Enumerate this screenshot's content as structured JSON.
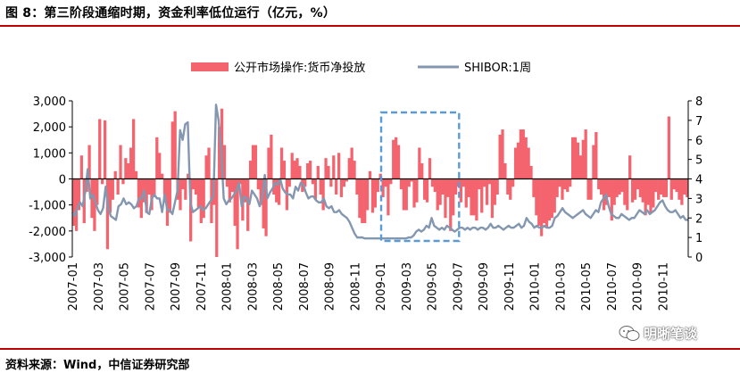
{
  "title": "图 8：第三阶段通缩时期，资金利率低位运行（亿元，%）",
  "source": "资料来源：Wind，中信证券研究部",
  "watermark": "明晰笔谈",
  "colors": {
    "bars": "#f4646e",
    "line": "#8497b0",
    "highlight_box": "#5b9bd5",
    "title_rule": "#c00000"
  },
  "chart_data": {
    "type": "bar+line",
    "legend": [
      "公开市场操作:货币净投放",
      "SHIBOR:1周"
    ],
    "legend_position": "top-center",
    "grid": false,
    "y_left": {
      "min": -3000,
      "max": 3000,
      "ticks": [
        "3,000",
        "2,000",
        "1,000",
        "0",
        "-1,000",
        "-2,000",
        "-3,000"
      ]
    },
    "y_right": {
      "min": 0,
      "max": 8,
      "ticks": [
        "8",
        "7",
        "6",
        "5",
        "4",
        "3",
        "2",
        "1",
        "0"
      ]
    },
    "x_range": [
      "2007-01",
      "2010-12"
    ],
    "x_ticks": [
      "2007-01",
      "2007-03",
      "2007-05",
      "2007-07",
      "2007-09",
      "2007-11",
      "2008-01",
      "2008-03",
      "2008-05",
      "2008-07",
      "2008-09",
      "2008-11",
      "2009-01",
      "2009-03",
      "2009-05",
      "2009-07",
      "2009-09",
      "2009-11",
      "2010-01",
      "2010-03",
      "2010-05",
      "2010-07",
      "2010-09",
      "2010-11"
    ],
    "highlight_region": {
      "from": "2009-01",
      "to": "2009-07"
    },
    "series": [
      {
        "name": "公开市场操作:货币净投放",
        "type": "bar",
        "unit": "亿元",
        "values": [
          -1800,
          -2000,
          -1200,
          900,
          -1700,
          -500,
          1300,
          -1500,
          -2000,
          -1000,
          2300,
          -200,
          2250,
          -2700,
          -1300,
          -800,
          300,
          -600,
          1300,
          -200,
          800,
          600,
          1200,
          2300,
          300,
          -1100,
          -1500,
          -900,
          -1300,
          -600,
          -1200,
          -700,
          1600,
          1000,
          200,
          -900,
          -1800,
          -1300,
          2200,
          2600,
          -800,
          -1200,
          -400,
          -800,
          200,
          -2400,
          -400,
          -600,
          -1100,
          -1700,
          -1500,
          900,
          1200,
          -1700,
          -1000,
          -3000,
          2000,
          2700,
          1300,
          -300,
          -900,
          -500,
          -1800,
          -2700,
          -200,
          -1600,
          -900,
          -2000,
          700,
          1300,
          1300,
          -400,
          -1000,
          -1900,
          -2200,
          1200,
          1700,
          -600,
          -900,
          -1000,
          1200,
          700,
          -1200,
          -300,
          1000,
          700,
          800,
          500,
          -500,
          -300,
          600,
          700,
          -200,
          -800,
          500,
          -600,
          -1200,
          800,
          500,
          -300,
          900,
          -600,
          1000,
          -700,
          -300,
          -100,
          800,
          1200,
          700,
          -600,
          -1500,
          -1700,
          -1700,
          -1200,
          300,
          -1300,
          -1100,
          -500,
          200,
          -700,
          -300,
          -1400,
          -200,
          1500,
          1600,
          1300,
          -400,
          -1200,
          -1200,
          -300,
          -100,
          -1100,
          -900,
          1200,
          600,
          -800,
          -900,
          800,
          -300,
          -500,
          -1200,
          -1000,
          -600,
          -1500,
          -700,
          -2000,
          -1400,
          -600,
          -300,
          -900,
          -300,
          -1100,
          -700,
          -1400,
          -1400,
          -1600,
          -400,
          -1300,
          -300,
          -1000,
          -200,
          -1500,
          -1000,
          -600,
          1700,
          1900,
          600,
          -600,
          -800,
          -300,
          1200,
          1400,
          1900,
          1900,
          1600,
          1200,
          500,
          -700,
          -1400,
          -1800,
          -2200,
          -1700,
          -1900,
          -1600,
          -1500,
          -1300,
          -700,
          -300,
          -800,
          -400,
          -500,
          -300,
          1600,
          1600,
          1400,
          900,
          1500,
          1900,
          -800,
          -800,
          1300,
          1800,
          -400,
          -600,
          -1200,
          -1000,
          -700,
          -1600,
          -1000,
          -700,
          -600,
          -500,
          -1000,
          -1200,
          900,
          -900,
          -800,
          -400,
          -700,
          -900,
          -1400,
          -1000,
          -1300,
          -1100,
          -500,
          -800,
          -600,
          -700,
          -700,
          2400,
          -800,
          -400,
          -500,
          -800,
          -1000,
          -600,
          -700
        ],
        "values_note_removed": true
      },
      {
        "name": "SHIBOR:1周",
        "type": "line",
        "unit": "%",
        "values": [
          2.3,
          2.1,
          2.5,
          2.8,
          2.6,
          3.3,
          4.5,
          3.0,
          3.2,
          2.8,
          2.4,
          2.2,
          2.5,
          3.6,
          2.5,
          2.1,
          2.0,
          1.9,
          2.6,
          2.7,
          3.0,
          2.7,
          2.8,
          2.7,
          2.5,
          2.6,
          3.0,
          3.0,
          3.4,
          2.3,
          2.2,
          3.0,
          3.2,
          3.0,
          3.0,
          2.3,
          3.2,
          2.4,
          2.4,
          2.2,
          2.8,
          3.4,
          6.5,
          6.0,
          6.8,
          6.9,
          2.8,
          2.3,
          2.4,
          2.5,
          2.6,
          2.4,
          2.5,
          2.7,
          2.9,
          3.1,
          7.8,
          7.0,
          5.5,
          3.0,
          2.7,
          2.9,
          3.0,
          3.2,
          3.4,
          3.8,
          2.6,
          3.1,
          3.0,
          2.7,
          3.4,
          3.2,
          3.0,
          2.6,
          3.0,
          4.2,
          3.0,
          3.3,
          3.5,
          3.8,
          3.7,
          4.0,
          3.5,
          3.3,
          3.2,
          3.2,
          3.0,
          3.6,
          3.4,
          3.8,
          3.7,
          3.3,
          3.0,
          3.1,
          3.1,
          2.9,
          2.8,
          2.8,
          3.0,
          2.6,
          2.5,
          2.6,
          2.3,
          2.3,
          2.4,
          2.2,
          2.1,
          2.0,
          1.8,
          1.5,
          1.2,
          1.0,
          1.0,
          1.0,
          0.95,
          0.95,
          0.95,
          0.95,
          0.95,
          0.95,
          0.95,
          0.95,
          0.95,
          0.95,
          0.95,
          0.95,
          0.95,
          0.95,
          0.95,
          0.95,
          0.95,
          1.0,
          1.0,
          1.1,
          1.3,
          1.4,
          1.3,
          1.4,
          1.6,
          1.5,
          2.0,
          1.6,
          1.5,
          1.4,
          1.5,
          1.4,
          1.6,
          1.5,
          1.4,
          1.3,
          1.4,
          1.5,
          1.5,
          1.4,
          1.5,
          1.4,
          1.5,
          1.5,
          1.4,
          1.5,
          1.5,
          1.4,
          1.5,
          1.7,
          1.5,
          1.5,
          1.6,
          1.5,
          1.4,
          1.5,
          1.6,
          1.5,
          1.5,
          1.6,
          1.7,
          1.5,
          1.6,
          2.0,
          1.8,
          1.7,
          1.5,
          1.6,
          1.5,
          1.5,
          1.6,
          1.5,
          1.5,
          1.6,
          2.0,
          2.1,
          2.3,
          2.5,
          2.3,
          2.2,
          2.1,
          2.0,
          2.1,
          2.2,
          2.3,
          2.4,
          2.2,
          2.1,
          2.0,
          2.2,
          2.4,
          2.3,
          2.8,
          3.0,
          3.2,
          2.6,
          2.2,
          2.1,
          2.0,
          2.0,
          2.2,
          2.1,
          2.0,
          1.9,
          2.0,
          2.0,
          2.2,
          2.4,
          2.3,
          2.2,
          2.4,
          2.2,
          2.3,
          2.4,
          2.6,
          2.8,
          2.9,
          2.6,
          2.4,
          2.3,
          2.3,
          2.4,
          2.2,
          2.0,
          2.1,
          1.9,
          1.9
        ]
      }
    ]
  }
}
